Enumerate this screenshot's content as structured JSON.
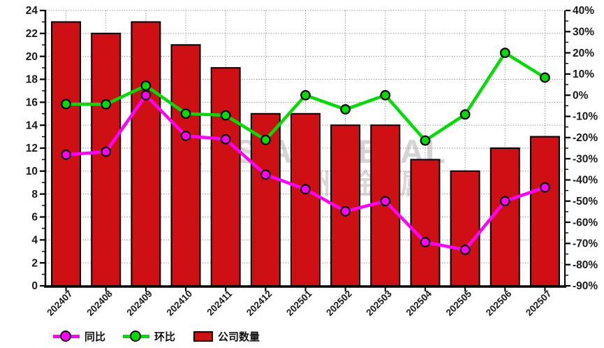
{
  "watermark": {
    "logo_letter": "A",
    "brand_text": "ASIAN METAL",
    "brand_text_cn": "亚洲金属网"
  },
  "chart_data": {
    "type": "bar",
    "title": "",
    "categories": [
      "202407",
      "202408",
      "202409",
      "202410",
      "202411",
      "202412",
      "202501",
      "202502",
      "202503",
      "202504",
      "202505",
      "202506",
      "202507"
    ],
    "series": [
      {
        "key": "yoy",
        "name": "同比",
        "type": "line",
        "axis": "right",
        "color": "#FF00FF",
        "values": [
          -28.1,
          -26.7,
          0,
          -19.2,
          -20.8,
          -37.5,
          -44.4,
          -54.8,
          -50,
          -69.4,
          -73,
          -50,
          -43.5
        ]
      },
      {
        "key": "mom",
        "name": "环比",
        "type": "line",
        "axis": "right",
        "color": "#00DD00",
        "values": [
          -4.2,
          -4.3,
          4.5,
          -8.7,
          -9.5,
          -21.1,
          0,
          -6.7,
          0,
          -21.4,
          -9.1,
          20,
          8.3
        ]
      },
      {
        "key": "companies",
        "name": "公司数量",
        "type": "bar",
        "axis": "left",
        "color": "#CE1014",
        "values": [
          23,
          22,
          23,
          21,
          19,
          15,
          15,
          14,
          14,
          11,
          10,
          12,
          13
        ]
      }
    ],
    "left_axis": {
      "min": 0,
      "max": 24,
      "tick_step": 2,
      "tick_labels": [
        "0",
        "2",
        "4",
        "6",
        "8",
        "10",
        "12",
        "14",
        "16",
        "18",
        "20",
        "22",
        "24"
      ]
    },
    "right_axis": {
      "min": -90,
      "max": 40,
      "tick_step": 10,
      "tick_labels": [
        "40%",
        "30%",
        "20%",
        "10%",
        "0%",
        "-10%",
        "-20%",
        "-30%",
        "-40%",
        "-50%",
        "-60%",
        "-70%",
        "-80%",
        "-90%"
      ]
    },
    "grid": true,
    "legend_position": "bottom"
  }
}
